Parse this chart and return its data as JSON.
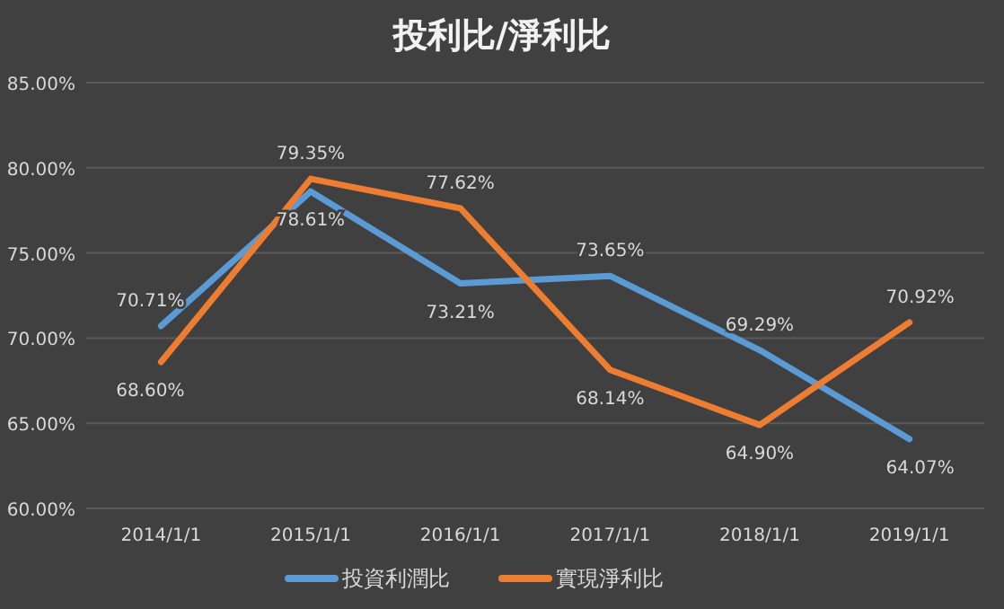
{
  "chart_data": {
    "type": "line",
    "title": "投利比/淨利比",
    "categories": [
      "2014/1/1",
      "2015/1/1",
      "2016/1/1",
      "2017/1/1",
      "2018/1/1",
      "2019/1/1"
    ],
    "series": [
      {
        "name": "投資利潤比",
        "color": "#5b9bd5",
        "values": [
          70.71,
          78.61,
          73.21,
          73.65,
          69.29,
          64.07
        ],
        "value_labels": [
          "70.71%",
          "78.61%",
          "73.21%",
          "73.65%",
          "69.29%",
          "64.07%"
        ]
      },
      {
        "name": "實現淨利比",
        "color": "#ed7d31",
        "values": [
          68.6,
          79.35,
          77.62,
          68.14,
          64.9,
          70.92
        ],
        "value_labels": [
          "68.60%",
          "79.35%",
          "77.62%",
          "68.14%",
          "64.90%",
          "70.92%"
        ]
      }
    ],
    "ylim": [
      60,
      85
    ],
    "yticks": [
      {
        "value": 60,
        "label": "60.00%"
      },
      {
        "value": 65,
        "label": "65.00%"
      },
      {
        "value": 70,
        "label": "70.00%"
      },
      {
        "value": 75,
        "label": "75.00%"
      },
      {
        "value": 80,
        "label": "80.00%"
      },
      {
        "value": 85,
        "label": "85.00%"
      }
    ],
    "grid": "y",
    "legend": "bottom",
    "marker": "none",
    "line_style": "solid"
  }
}
